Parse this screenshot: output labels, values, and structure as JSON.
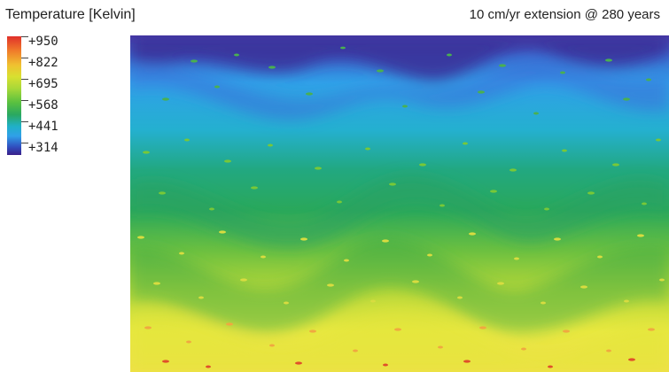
{
  "title": "Temperature [Kelvin]",
  "subtitle": "10 cm/yr extension @ 280 years",
  "legend": {
    "labels": [
      "+950",
      "+822",
      "+695",
      "+568",
      "+441",
      "+314"
    ]
  },
  "colors": {
    "hot": "#e0302a",
    "warm": "#f0c030",
    "mid": "#58c040",
    "cool": "#30a0e8",
    "cold": "#3a1f8a"
  }
}
